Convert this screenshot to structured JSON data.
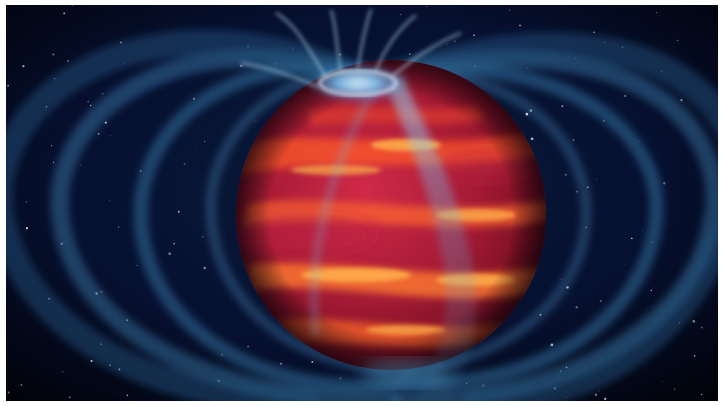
{
  "image": {
    "subject": "brown-dwarf-with-magnetic-field-and-aurora",
    "icon": "planet-icon",
    "colors": {
      "space": "#02030d",
      "field_lines": "#3f7fa8",
      "aurora": "#8fd8ff",
      "planet_dark": "#6e0f1f",
      "planet_mid": "#b3213a",
      "bands": "#ff6a2a",
      "band_highlight": "#ffb04a"
    }
  }
}
